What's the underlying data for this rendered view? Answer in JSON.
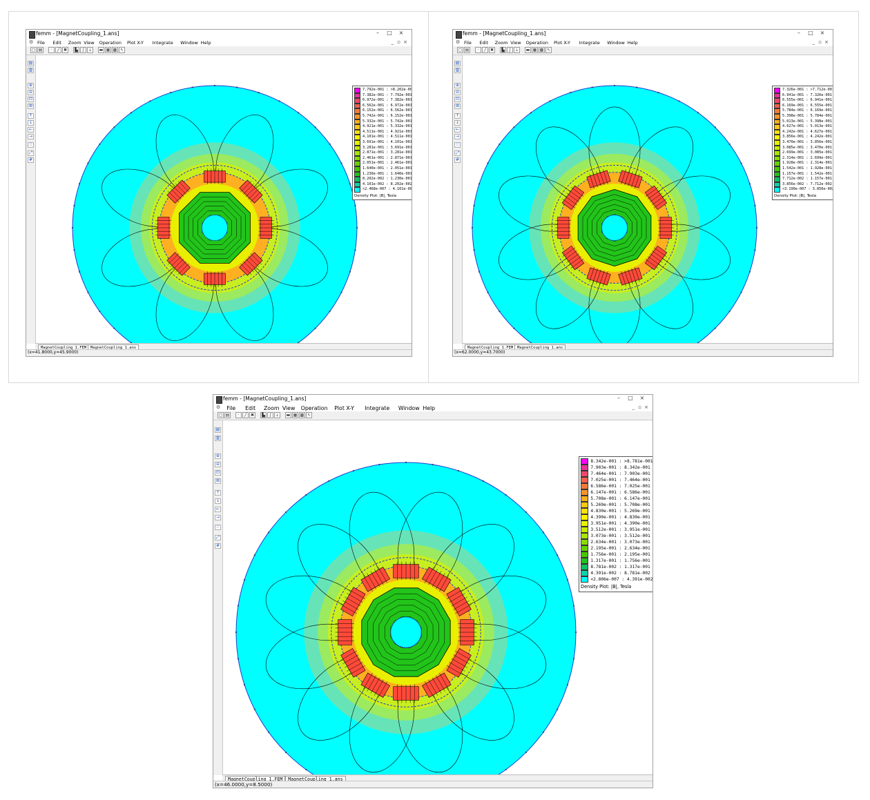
{
  "windows": [
    {
      "id": "w1",
      "title": "femm - [MagnetCoupling_1.ans]",
      "menu": [
        "File",
        "Edit",
        "Zoom",
        "View",
        "Operation",
        "Plot X-Y",
        "Integrate",
        "Window",
        "Help"
      ],
      "tabs": [
        "MagnetCoupling_1.FEM",
        "MagnetCoupling_1.ans"
      ],
      "status": "(x=41.8000,y=45.9000)",
      "legend_caption": "Density Plot: |B|, Tesla",
      "legend": [
        "7.792e-001 : >8.202e-001",
        "7.382e-001 : 7.792e-001",
        "6.972e-001 : 7.382e-001",
        "6.562e-001 : 6.972e-001",
        "6.152e-001 : 6.562e-001",
        "5.742e-001 : 6.152e-001",
        "5.332e-001 : 5.742e-001",
        "4.921e-001 : 5.332e-001",
        "4.511e-001 : 4.921e-001",
        "4.101e-001 : 4.511e-001",
        "3.691e-001 : 4.101e-001",
        "3.281e-001 : 3.691e-001",
        "2.871e-001 : 3.281e-001",
        "2.461e-001 : 2.871e-001",
        "2.051e-001 : 2.461e-001",
        "1.640e-001 : 2.051e-001",
        "1.230e-001 : 1.640e-001",
        "8.202e-002 : 1.230e-001",
        "4.101e-002 : 8.202e-002",
        "<2.468e-007 : 4.101e-002"
      ],
      "magnets": 8
    },
    {
      "id": "w2",
      "title": "femm - [MagnetCoupling_1.ans]",
      "menu": [
        "File",
        "Edit",
        "Zoom",
        "View",
        "Operation",
        "Plot X-Y",
        "Integrate",
        "Window",
        "Help"
      ],
      "tabs": [
        "MagnetCoupling_1.FEM",
        "MagnetCoupling_1.ans"
      ],
      "status": "(x=62.0000,y=43.7000)",
      "legend_caption": "Density Plot: |B|, Tesla",
      "legend": [
        "7.326e-001 : >7.712e-001",
        "6.941e-001 : 7.326e-001",
        "6.555e-001 : 6.941e-001",
        "6.169e-001 : 6.555e-001",
        "5.784e-001 : 6.169e-001",
        "5.398e-001 : 5.784e-001",
        "5.013e-001 : 5.398e-001",
        "4.627e-001 : 5.013e-001",
        "4.242e-001 : 4.627e-001",
        "3.856e-001 : 4.242e-001",
        "3.470e-001 : 3.856e-001",
        "3.085e-001 : 3.470e-001",
        "2.699e-001 : 3.085e-001",
        "2.314e-001 : 2.699e-001",
        "1.928e-001 : 2.314e-001",
        "1.542e-001 : 1.928e-001",
        "1.157e-001 : 1.542e-001",
        "7.712e-002 : 1.157e-001",
        "3.856e-002 : 7.712e-002",
        "<3.190e-007 : 3.856e-002"
      ],
      "magnets": 10
    },
    {
      "id": "w3",
      "title": "femm - [MagnetCoupling_1.ans]",
      "menu": [
        "File",
        "Edit",
        "Zoom",
        "View",
        "Operation",
        "Plot X-Y",
        "Integrate",
        "Window",
        "Help"
      ],
      "tabs": [
        "MagnetCoupling_1.FEM",
        "MagnetCoupling_1.ans"
      ],
      "status": "(x=46.0000,y=8.5000)",
      "legend_caption": "Density Plot: |B|, Tesla",
      "legend": [
        "8.342e-001 : >8.781e-001",
        "7.903e-001 : 8.342e-001",
        "7.464e-001 : 7.903e-001",
        "7.025e-001 : 7.464e-001",
        "6.586e-001 : 7.025e-001",
        "6.147e-001 : 6.586e-001",
        "5.708e-001 : 6.147e-001",
        "5.269e-001 : 5.708e-001",
        "4.830e-001 : 5.269e-001",
        "4.390e-001 : 4.830e-001",
        "3.951e-001 : 4.390e-001",
        "3.512e-001 : 3.951e-001",
        "3.073e-001 : 3.512e-001",
        "2.634e-001 : 3.073e-001",
        "2.195e-001 : 2.634e-001",
        "1.756e-001 : 2.195e-001",
        "1.317e-001 : 1.756e-001",
        "8.781e-002 : 1.317e-001",
        "4.391e-002 : 8.781e-002",
        "<2.806e-007 : 4.391e-002"
      ],
      "magnets": 12
    }
  ],
  "legend_colors": [
    "#ff00ff",
    "#e8339a",
    "#f0486a",
    "#f4604a",
    "#f77a38",
    "#f9942a",
    "#fbad1e",
    "#fdc615",
    "#ffe00e",
    "#fff200",
    "#e6f200",
    "#c8ec00",
    "#a8e600",
    "#88dc00",
    "#66d200",
    "#44c800",
    "#26c020",
    "#10c060",
    "#10d0a8",
    "#00ffff"
  ],
  "colors": {
    "background_field": "#00ffff",
    "core": "#22c41a",
    "flux_line": "#000000",
    "boundary": "#1b3fd0"
  }
}
